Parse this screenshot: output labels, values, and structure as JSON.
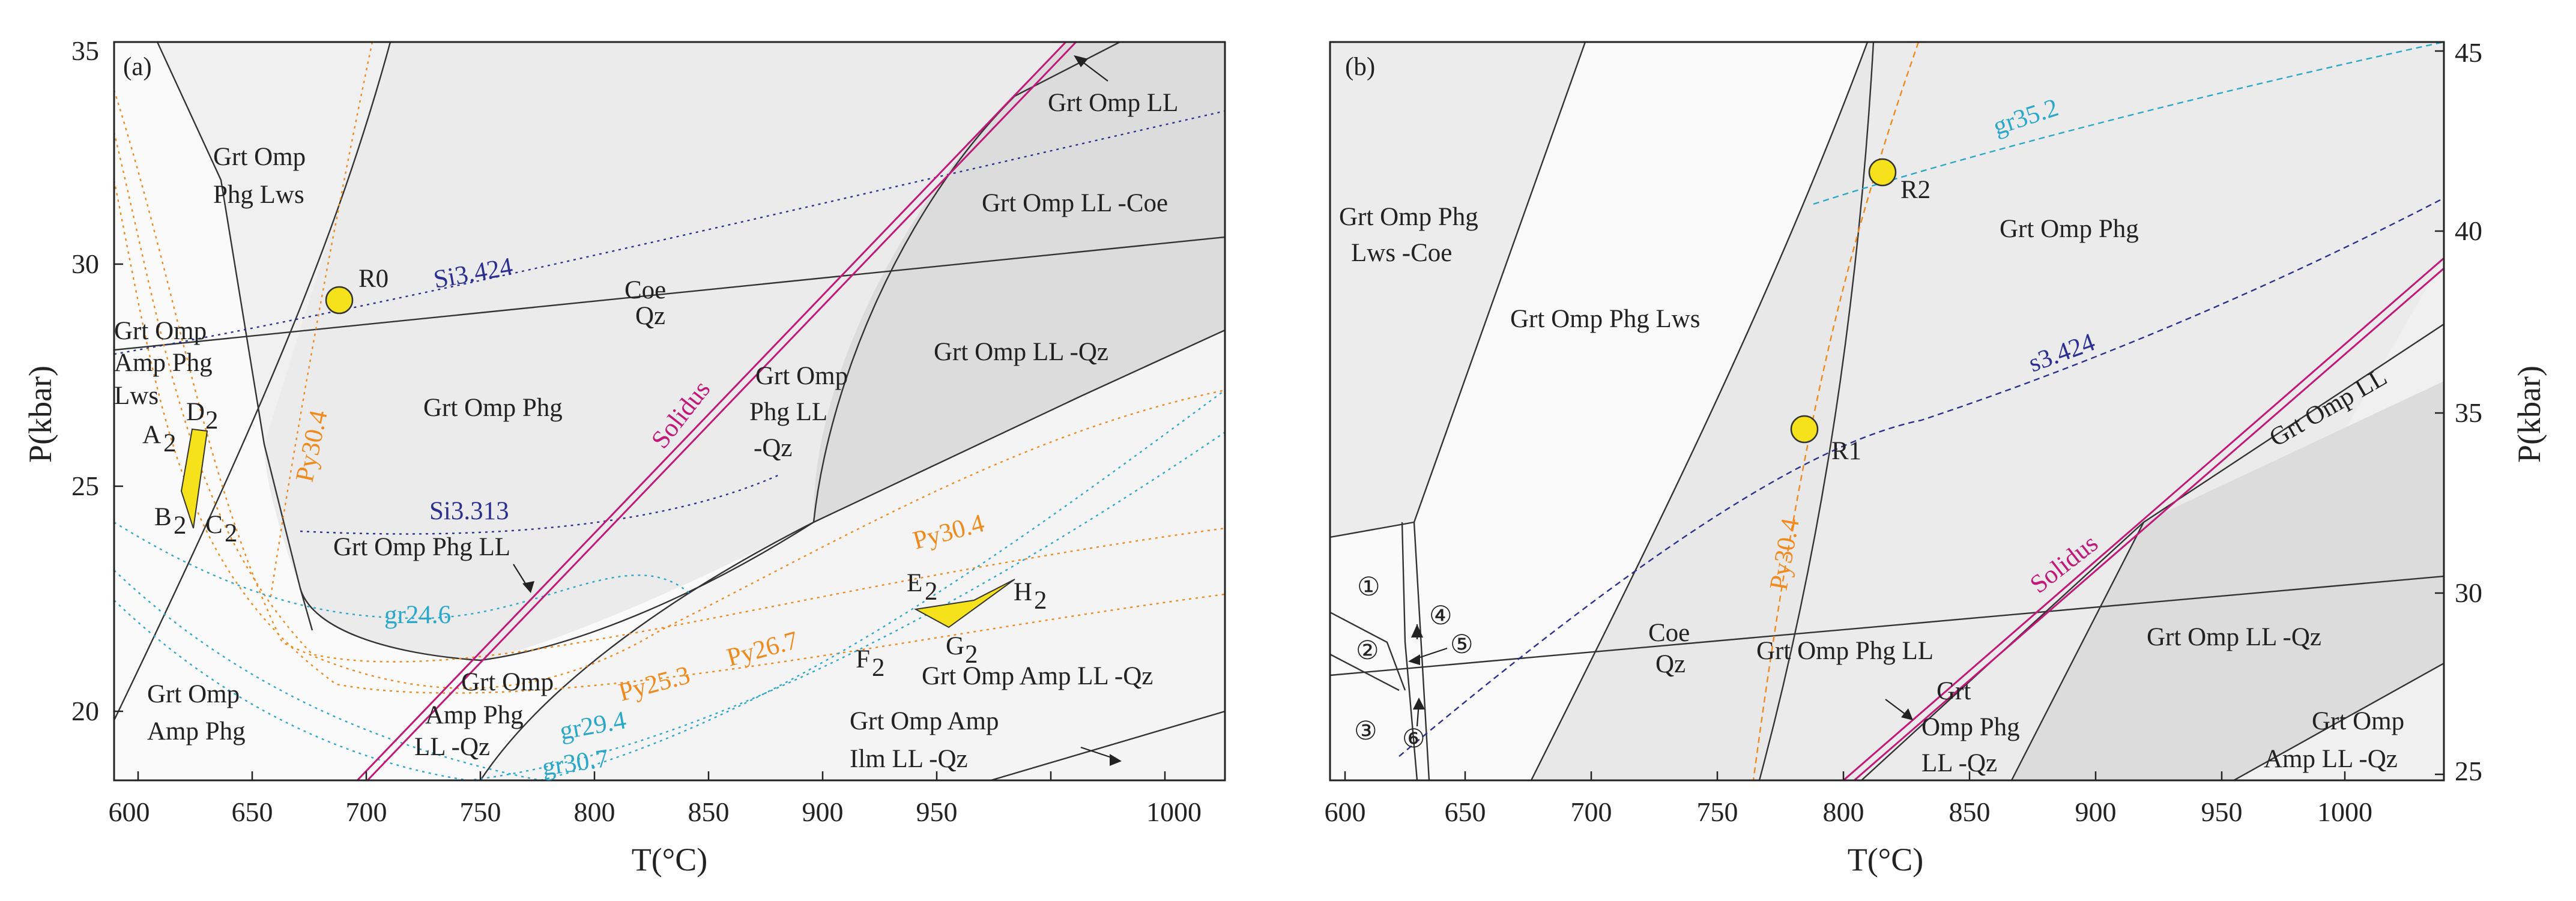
{
  "panel_a": {
    "tag": "(a)",
    "x_axis_label": "T(°C)",
    "y_axis_label": "P(kbar)",
    "x_ticks": [
      "600",
      "650",
      "700",
      "750",
      "800",
      "850",
      "900",
      "950",
      "1000"
    ],
    "y_ticks": [
      "20",
      "25",
      "30",
      "35"
    ],
    "fields": [
      "Grt Omp",
      "Phg Lws",
      "Grt Omp LL",
      "Grt Omp LL -Coe",
      "Coe",
      "Qz",
      "Grt Omp LL -Qz",
      "Grt Omp",
      "Amp Phg",
      "Lws",
      "Grt Omp Phg",
      "Grt Omp",
      "Phg LL",
      "-Qz",
      "Grt Omp Phg LL",
      "Grt Omp",
      "Amp Phg",
      "Grt Omp",
      "Amp Phg",
      "LL -Qz",
      "Grt Omp Amp LL -Qz",
      "Grt Omp Amp",
      "Ilm LL -Qz"
    ],
    "isopleths": {
      "si1": "Si3.424",
      "si2": "Si3.313",
      "py1": "Py30.4",
      "py2": "Py30.4",
      "py3": "Py26.7",
      "py4": "Py25.3",
      "gr1": "gr24.6",
      "gr2": "gr29.4",
      "gr3": "gr30.7"
    },
    "solidus": "Solidus",
    "point": "R0",
    "corners": {
      "A": "A",
      "B": "B",
      "C": "C",
      "D": "D",
      "E": "E",
      "F": "F",
      "G": "G",
      "H": "H",
      "sub": "2"
    }
  },
  "panel_b": {
    "tag": "(b)",
    "x_axis_label": "T(°C)",
    "y_axis_label": "P(kbar)",
    "x_ticks": [
      "600",
      "650",
      "700",
      "750",
      "800",
      "850",
      "900",
      "950",
      "1000"
    ],
    "y_ticks": [
      "25",
      "30",
      "35",
      "40",
      "45"
    ],
    "fields": [
      "Grt Omp Phg",
      "Lws -Coe",
      "Grt Omp Phg Lws",
      "Grt Omp Phg",
      "Grt Omp LL",
      "Coe",
      "Qz",
      "Grt Omp Phg LL",
      "Grt",
      "Omp Phg",
      "LL -Qz",
      "Grt Omp LL -Qz",
      "Grt Omp",
      "Amp LL -Qz"
    ],
    "small_fields": [
      "①",
      "②",
      "③",
      "④",
      "⑤",
      "⑥"
    ],
    "isopleths": {
      "gr": "gr35.2",
      "si": "s3.424",
      "py": "Py30.4"
    },
    "solidus": "Solidus",
    "points": [
      "R1",
      "R2"
    ]
  },
  "colors": {
    "solidus": "#c2187a",
    "si_isopleth": "#2b2f8f",
    "py_isopleth": "#ee8a1e",
    "gr_isopleth": "#2aa7c9",
    "point_fill": "#f5e21a",
    "field_light": "#f2f2f2",
    "field_mid": "#e8e8e8",
    "field_dark": "#dcdcdc"
  }
}
